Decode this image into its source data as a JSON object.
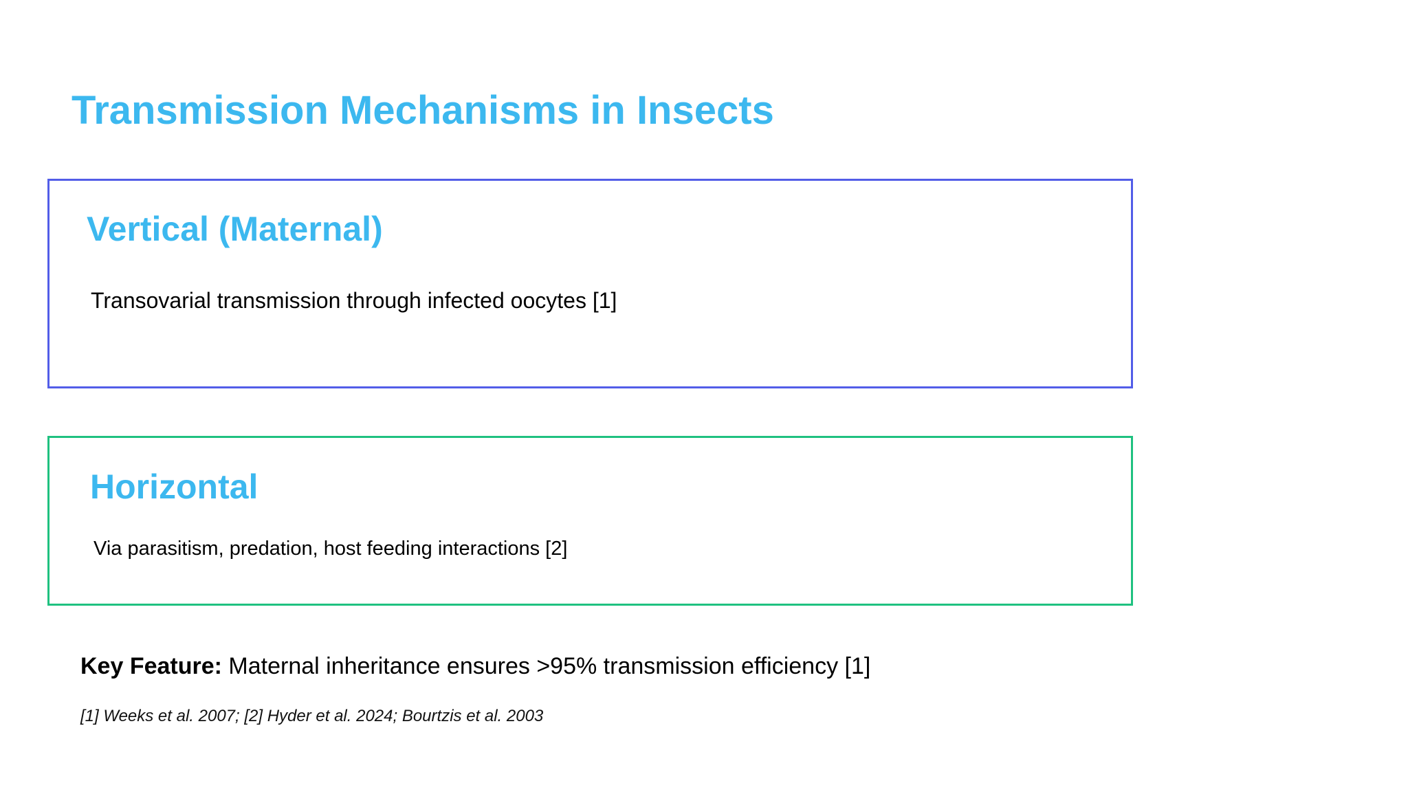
{
  "colors": {
    "heading": "#3cb8ef",
    "vertical_border": "#525de8",
    "horizontal_border": "#1fc180",
    "body_text": "#000000"
  },
  "title": "Transmission Mechanisms in Insects",
  "sections": [
    {
      "heading": "Vertical (Maternal)",
      "text": "Transovarial transmission through infected oocytes [1]"
    },
    {
      "heading": "Horizontal",
      "text": "Via parasitism, predation, host feeding interactions [2]"
    }
  ],
  "key_feature": {
    "label": "Key Feature:",
    "text": " Maternal inheritance ensures >95% transmission efficiency [1]"
  },
  "references": "[1] Weeks et al. 2007; [2] Hyder et al. 2024; Bourtzis et al. 2003"
}
